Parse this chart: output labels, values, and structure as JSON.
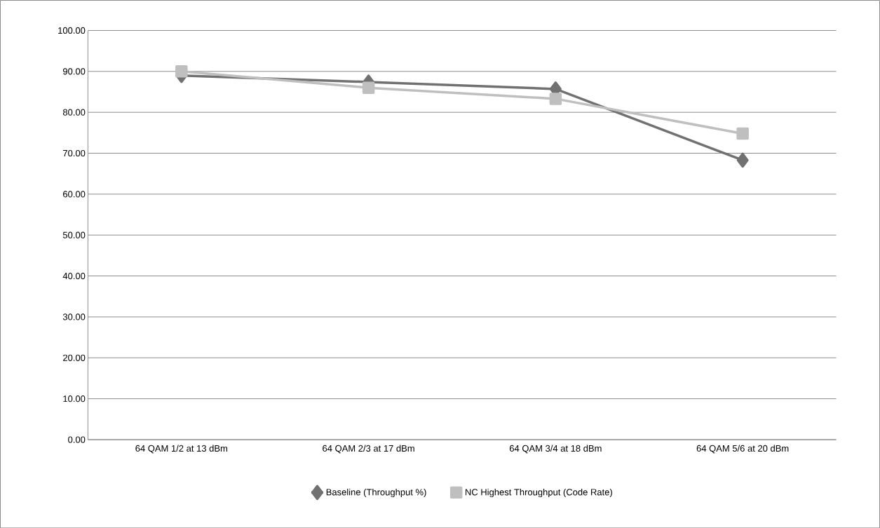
{
  "chart_data": {
    "type": "line",
    "categories": [
      "64 QAM 1/2 at 13 dBm",
      "64 QAM 2/3 at 17 dBm",
      "64 QAM 3/4 at 18 dBm",
      "64 QAM 5/6 at 20 dBm"
    ],
    "series": [
      {
        "name": "Baseline (Throughput %)",
        "color": "#717171",
        "marker": "diamond",
        "values": [
          89.0,
          87.4,
          85.7,
          68.3
        ]
      },
      {
        "name": "NC Highest Throughput (Code Rate)",
        "color": "#bfbfbf",
        "marker": "square",
        "values": [
          90.0,
          86.0,
          83.3,
          74.8
        ]
      }
    ],
    "ylim": [
      0,
      100
    ],
    "yticks": [
      {
        "value": 0,
        "label": "0.00"
      },
      {
        "value": 10,
        "label": "10.00"
      },
      {
        "value": 20,
        "label": "20.00"
      },
      {
        "value": 30,
        "label": "30.00"
      },
      {
        "value": 40,
        "label": "40.00"
      },
      {
        "value": 50,
        "label": "50.00"
      },
      {
        "value": 60,
        "label": "60.00"
      },
      {
        "value": 70,
        "label": "70.00"
      },
      {
        "value": 80,
        "label": "80.00"
      },
      {
        "value": 90,
        "label": "90.00"
      },
      {
        "value": 100,
        "label": "100.00"
      }
    ],
    "grid": "y",
    "legend": "bottom",
    "line_style": "solid"
  }
}
